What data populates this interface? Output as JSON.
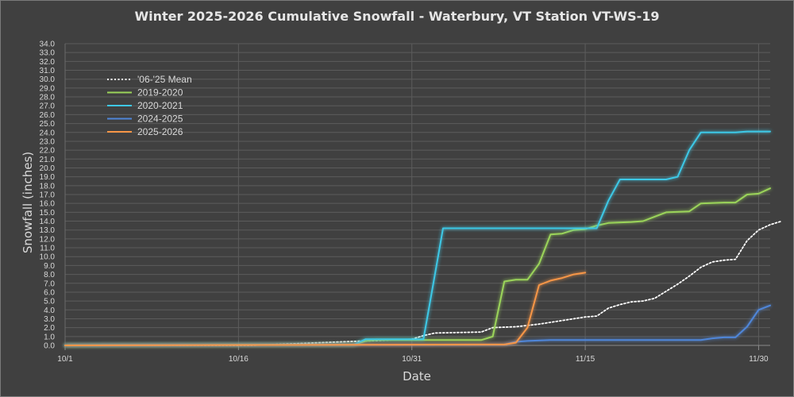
{
  "chart_data": {
    "type": "line",
    "title": "Winter 2025-2026 Cumulative Snowfall - Waterbury, VT Station VT-WS-19",
    "xlabel": "Date",
    "ylabel": "Snowfall (inches)",
    "x_ticks": [
      "10/1",
      "10/16",
      "10/31",
      "11/15",
      "11/30"
    ],
    "ylim": [
      0,
      34
    ],
    "y_step": 1,
    "grid": true,
    "legend_position": "top-left",
    "series": [
      {
        "name": "'06-'25 Mean",
        "color": "#ffffff",
        "dash": true,
        "points": [
          [
            0,
            0
          ],
          [
            16,
            0
          ],
          [
            18,
            0.1
          ],
          [
            20,
            0.2
          ],
          [
            22,
            0.3
          ],
          [
            24,
            0.4
          ],
          [
            26,
            0.5
          ],
          [
            28,
            0.6
          ],
          [
            30,
            0.7
          ],
          [
            31,
            1.1
          ],
          [
            32,
            1.4
          ],
          [
            36,
            1.5
          ],
          [
            37,
            2.0
          ],
          [
            39,
            2.1
          ],
          [
            41,
            2.4
          ],
          [
            43,
            2.8
          ],
          [
            45,
            3.2
          ],
          [
            46,
            3.3
          ],
          [
            47,
            4.2
          ],
          [
            48,
            4.6
          ],
          [
            49,
            4.9
          ],
          [
            50,
            5.0
          ],
          [
            51,
            5.3
          ],
          [
            52,
            6.1
          ],
          [
            53,
            6.9
          ],
          [
            54,
            7.8
          ],
          [
            55,
            8.8
          ],
          [
            56,
            9.4
          ],
          [
            57,
            9.6
          ],
          [
            58,
            9.7
          ],
          [
            59,
            11.8
          ],
          [
            60,
            13.0
          ],
          [
            61,
            13.6
          ],
          [
            62,
            14.0
          ]
        ]
      },
      {
        "name": "2019-2020",
        "color": "#9bd45a",
        "dash": false,
        "points": [
          [
            0,
            0
          ],
          [
            25,
            0.1
          ],
          [
            26,
            0.5
          ],
          [
            27,
            0.6
          ],
          [
            36,
            0.6
          ],
          [
            37,
            1.0
          ],
          [
            38,
            7.2
          ],
          [
            39,
            7.4
          ],
          [
            40,
            7.4
          ],
          [
            41,
            9.2
          ],
          [
            42,
            12.5
          ],
          [
            43,
            12.6
          ],
          [
            44,
            13.0
          ],
          [
            45,
            13.1
          ],
          [
            46,
            13.5
          ],
          [
            47,
            13.8
          ],
          [
            49,
            13.9
          ],
          [
            50,
            14.0
          ],
          [
            51,
            14.5
          ],
          [
            52,
            15.0
          ],
          [
            54,
            15.1
          ],
          [
            55,
            16.0
          ],
          [
            57,
            16.1
          ],
          [
            58,
            16.1
          ],
          [
            59,
            17.0
          ],
          [
            60,
            17.1
          ],
          [
            61,
            17.7
          ]
        ]
      },
      {
        "name": "2020-2021",
        "color": "#3ec8e6",
        "dash": false,
        "points": [
          [
            0,
            0
          ],
          [
            25,
            0.1
          ],
          [
            26,
            0.7
          ],
          [
            31,
            0.7
          ],
          [
            32,
            8.0
          ],
          [
            32.7,
            13.2
          ],
          [
            46,
            13.2
          ],
          [
            47,
            16.3
          ],
          [
            48,
            18.7
          ],
          [
            52,
            18.7
          ],
          [
            53,
            19.0
          ],
          [
            54,
            22.0
          ],
          [
            55,
            24.0
          ],
          [
            58,
            24.0
          ],
          [
            59,
            24.1
          ],
          [
            60,
            24.1
          ],
          [
            61,
            24.1
          ]
        ]
      },
      {
        "name": "2024-2025",
        "color": "#4f86d9",
        "dash": false,
        "points": [
          [
            0,
            0
          ],
          [
            38,
            0.1
          ],
          [
            39,
            0.4
          ],
          [
            40,
            0.5
          ],
          [
            42,
            0.6
          ],
          [
            55,
            0.6
          ],
          [
            56,
            0.8
          ],
          [
            57,
            0.9
          ],
          [
            58,
            0.9
          ],
          [
            59,
            2.1
          ],
          [
            60,
            4.0
          ],
          [
            61,
            4.5
          ]
        ]
      },
      {
        "name": "2025-2026",
        "color": "#f79646",
        "dash": false,
        "points": [
          [
            0,
            0
          ],
          [
            36,
            0.1
          ],
          [
            38,
            0.1
          ],
          [
            39,
            0.3
          ],
          [
            40,
            2.0
          ],
          [
            41,
            6.8
          ],
          [
            42,
            7.3
          ],
          [
            43,
            7.6
          ],
          [
            44,
            8.0
          ],
          [
            45,
            8.2
          ]
        ]
      }
    ]
  }
}
